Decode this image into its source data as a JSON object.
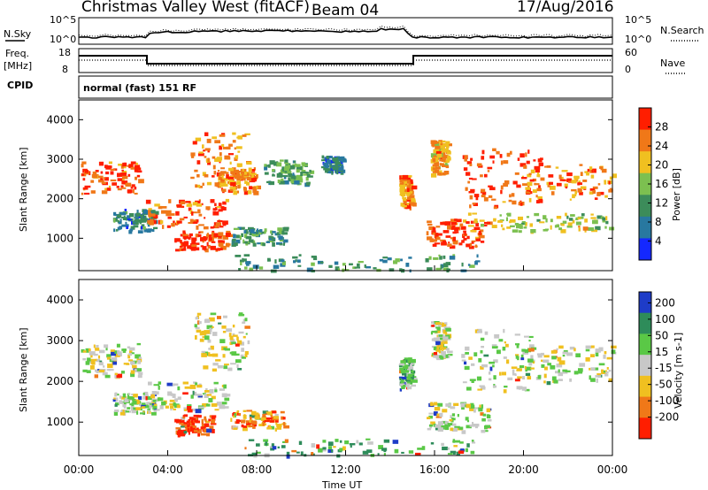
{
  "header": {
    "title": "Christmas Valley West (fitACF)",
    "beam": "Beam 04",
    "date": "17/Aug/2016"
  },
  "noise_panel": {
    "left_label": "N.Sky",
    "right_label": "N.Search",
    "ytop": "10^5",
    "ybottom": "10^0",
    "rtop": "10^5",
    "rbottom": "10^0"
  },
  "freq_panel": {
    "left_label": "Freq.",
    "units": "[MHz]",
    "ytop": "18",
    "ybottom": "8",
    "right_label": "Nave",
    "rtop": "60",
    "rbottom": "0"
  },
  "cpid": {
    "label": "CPID",
    "mode": "normal (fast) 151 RF"
  },
  "chart_data": [
    {
      "type": "heatmap",
      "panel": "power",
      "ylabel": "Slant Range [km]",
      "yticks": [
        "1000",
        "2000",
        "3000",
        "4000"
      ],
      "ylim": [
        180,
        4500
      ],
      "xlim": [
        0,
        24
      ],
      "colorbar_label": "Power [dB]",
      "colorbar_ticks": [
        "4",
        "8",
        "12",
        "16",
        "20",
        "24",
        "28"
      ],
      "colorbar_range": [
        0,
        32
      ],
      "colors": [
        "#1428ff",
        "#2878a0",
        "#3c8c5a",
        "#7cc050",
        "#f0c020",
        "#f07818",
        "#ff1e00"
      ],
      "blobs": [
        {
          "t": [
            0.1,
            2.7
          ],
          "r": [
            2150,
            2950
          ],
          "level": 0.86
        },
        {
          "t": [
            1.5,
            3.4
          ],
          "r": [
            1200,
            1750
          ],
          "level": 0.3
        },
        {
          "t": [
            3.0,
            6.6
          ],
          "r": [
            1300,
            2000
          ],
          "level": 0.82
        },
        {
          "t": [
            4.3,
            6.7
          ],
          "r": [
            700,
            1200
          ],
          "level": 0.9
        },
        {
          "t": [
            5.0,
            7.6
          ],
          "r": [
            2300,
            3700
          ],
          "level": 0.78
        },
        {
          "t": [
            6.2,
            8.0
          ],
          "r": [
            2200,
            2800
          ],
          "level": 0.75
        },
        {
          "t": [
            6.8,
            9.3
          ],
          "r": [
            850,
            1300
          ],
          "level": 0.35
        },
        {
          "t": [
            8.3,
            10.4
          ],
          "r": [
            2400,
            3000
          ],
          "level": 0.4
        },
        {
          "t": [
            10.9,
            11.8
          ],
          "r": [
            2700,
            3100
          ],
          "level": 0.25
        },
        {
          "t": [
            14.4,
            15.0
          ],
          "r": [
            1800,
            2600
          ],
          "level": 0.75
        },
        {
          "t": [
            15.6,
            18.4
          ],
          "r": [
            800,
            1500
          ],
          "level": 0.86
        },
        {
          "t": [
            15.8,
            16.6
          ],
          "r": [
            2600,
            3500
          ],
          "level": 0.7
        },
        {
          "t": [
            17.2,
            20.8
          ],
          "r": [
            1800,
            3300
          ],
          "level": 0.88
        },
        {
          "t": [
            17.5,
            23.9
          ],
          "r": [
            1200,
            1650
          ],
          "level": 0.55
        },
        {
          "t": [
            19.8,
            24.0
          ],
          "r": [
            2000,
            2900
          ],
          "level": 0.76
        },
        {
          "t": [
            7.0,
            18.0
          ],
          "r": [
            200,
            600
          ],
          "level": 0.35
        }
      ]
    },
    {
      "type": "heatmap",
      "panel": "velocity",
      "xlabel": "Time UT",
      "ylabel": "Slant Range [km]",
      "xticks": [
        "00:00",
        "04:00",
        "08:00",
        "12:00",
        "16:00",
        "20:00",
        "00:00"
      ],
      "yticks": [
        "1000",
        "2000",
        "3000",
        "4000"
      ],
      "ylim": [
        180,
        4500
      ],
      "xlim": [
        0,
        24
      ],
      "colorbar_label": "Velocity [m s-1]",
      "colorbar_ticks": [
        "200",
        "100",
        "50",
        "15",
        "-15",
        "-50",
        "-100",
        "-200"
      ],
      "colors": [
        "#1e3cc8",
        "#2e8c5a",
        "#5ac846",
        "#c8c8c8",
        "#f0c020",
        "#f07818",
        "#ff1e00"
      ],
      "blobs": [
        {
          "t": [
            0.1,
            2.7
          ],
          "r": [
            2150,
            2950
          ],
          "level": 0.5
        },
        {
          "t": [
            1.5,
            3.4
          ],
          "r": [
            1200,
            1750
          ],
          "level": 0.45
        },
        {
          "t": [
            3.0,
            6.6
          ],
          "r": [
            1300,
            2000
          ],
          "level": 0.5
        },
        {
          "t": [
            4.3,
            6.0
          ],
          "r": [
            700,
            1200
          ],
          "level": 0.92
        },
        {
          "t": [
            5.0,
            7.6
          ],
          "r": [
            2300,
            3700
          ],
          "level": 0.55
        },
        {
          "t": [
            6.8,
            9.3
          ],
          "r": [
            850,
            1300
          ],
          "level": 0.75
        },
        {
          "t": [
            14.4,
            15.0
          ],
          "r": [
            1800,
            2600
          ],
          "level": 0.35
        },
        {
          "t": [
            15.6,
            18.4
          ],
          "r": [
            800,
            1500
          ],
          "level": 0.5
        },
        {
          "t": [
            15.8,
            16.6
          ],
          "r": [
            2600,
            3500
          ],
          "level": 0.5
        },
        {
          "t": [
            17.2,
            20.8
          ],
          "r": [
            1800,
            3300
          ],
          "level": 0.5
        },
        {
          "t": [
            19.8,
            24.0
          ],
          "r": [
            2000,
            2900
          ],
          "level": 0.5
        },
        {
          "t": [
            7.0,
            18.0
          ],
          "r": [
            200,
            600
          ],
          "level": 0.3
        }
      ]
    }
  ]
}
